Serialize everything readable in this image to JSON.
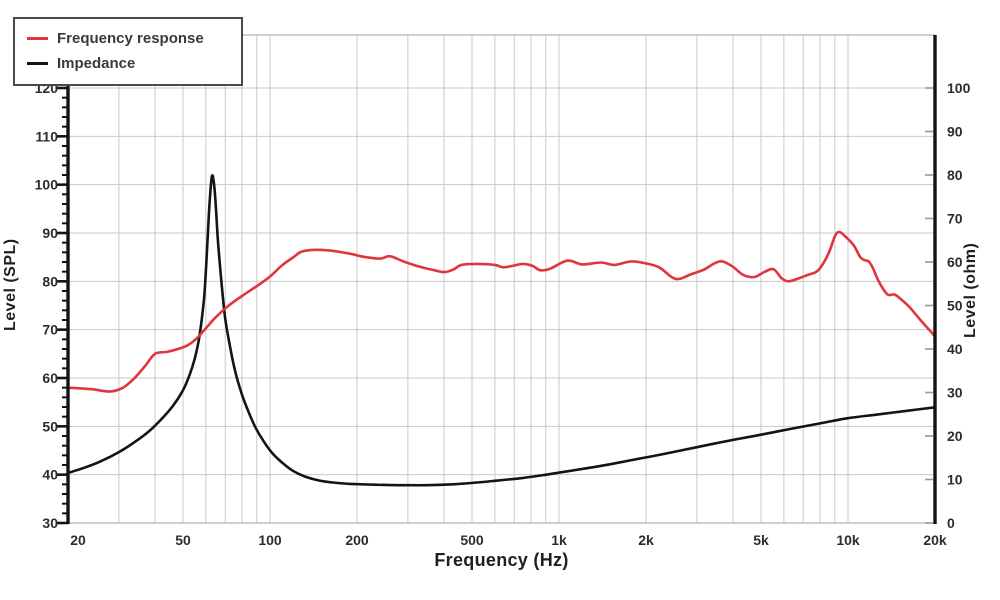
{
  "legend": {
    "items": [
      {
        "label": "Frequency response",
        "color": "#e0353f"
      },
      {
        "label": "Impedance",
        "color": "#141414"
      }
    ]
  },
  "axes": {
    "x": {
      "label": "Frequency (Hz)",
      "scale": "log",
      "min": 20,
      "max": 20000,
      "ticks": [
        {
          "f": 20,
          "label": "20"
        },
        {
          "f": 50,
          "label": "50"
        },
        {
          "f": 100,
          "label": "100"
        },
        {
          "f": 200,
          "label": "200"
        },
        {
          "f": 500,
          "label": "500"
        },
        {
          "f": 1000,
          "label": "1k"
        },
        {
          "f": 2000,
          "label": "2k"
        },
        {
          "f": 5000,
          "label": "5k"
        },
        {
          "f": 10000,
          "label": "10k"
        },
        {
          "f": 20000,
          "label": "20k"
        }
      ]
    },
    "y_left": {
      "label": "Level (SPL)",
      "min": 30,
      "max": 120,
      "tick_labels": [
        30,
        40,
        50,
        60,
        70,
        80,
        90,
        100,
        110,
        120
      ],
      "minor_step": 2
    },
    "y_right": {
      "label": "Level (ohm)",
      "min": 0,
      "max": 100,
      "tick_labels": [
        0,
        10,
        20,
        30,
        40,
        50,
        60,
        70,
        80,
        90,
        100
      ]
    }
  },
  "chart_data": {
    "type": "line",
    "x_scale": "log",
    "x_range": [
      20,
      20000
    ],
    "grid": true,
    "legend_position": "top-left",
    "series": [
      {
        "name": "Frequency response",
        "axis": "left",
        "unit": "dB SPL",
        "color": "#e0353f",
        "points": [
          [
            20,
            58
          ],
          [
            24,
            57.7
          ],
          [
            28,
            57.2
          ],
          [
            31,
            58
          ],
          [
            34,
            60
          ],
          [
            37,
            62.5
          ],
          [
            40,
            65
          ],
          [
            44,
            65.4
          ],
          [
            48,
            66
          ],
          [
            52,
            66.8
          ],
          [
            56,
            68.3
          ],
          [
            60,
            70.3
          ],
          [
            65,
            72.6
          ],
          [
            72,
            75
          ],
          [
            81,
            77.2
          ],
          [
            91,
            79.2
          ],
          [
            100,
            81
          ],
          [
            110,
            83.3
          ],
          [
            120,
            84.9
          ],
          [
            128,
            86.1
          ],
          [
            140,
            86.5
          ],
          [
            160,
            86.4
          ],
          [
            190,
            85.7
          ],
          [
            210,
            85.1
          ],
          [
            240,
            84.7
          ],
          [
            260,
            85.2
          ],
          [
            290,
            84.1
          ],
          [
            330,
            83
          ],
          [
            370,
            82.3
          ],
          [
            400,
            81.9
          ],
          [
            430,
            82.4
          ],
          [
            460,
            83.4
          ],
          [
            520,
            83.6
          ],
          [
            600,
            83.4
          ],
          [
            640,
            82.9
          ],
          [
            690,
            83.2
          ],
          [
            750,
            83.6
          ],
          [
            810,
            83.2
          ],
          [
            860,
            82.3
          ],
          [
            930,
            82.6
          ],
          [
            1070,
            84.3
          ],
          [
            1200,
            83.5
          ],
          [
            1400,
            83.9
          ],
          [
            1550,
            83.4
          ],
          [
            1770,
            84.1
          ],
          [
            1970,
            83.8
          ],
          [
            2220,
            82.9
          ],
          [
            2450,
            80.9
          ],
          [
            2610,
            80.5
          ],
          [
            2870,
            81.5
          ],
          [
            3170,
            82.4
          ],
          [
            3470,
            83.8
          ],
          [
            3690,
            84.1
          ],
          [
            4000,
            83
          ],
          [
            4350,
            81.3
          ],
          [
            4740,
            80.9
          ],
          [
            5160,
            82
          ],
          [
            5530,
            82.5
          ],
          [
            5900,
            80.6
          ],
          [
            6230,
            80
          ],
          [
            6750,
            80.6
          ],
          [
            7310,
            81.4
          ],
          [
            7670,
            81.8
          ],
          [
            8000,
            82.7
          ],
          [
            8570,
            85.8
          ],
          [
            9000,
            89.3
          ],
          [
            9300,
            90.2
          ],
          [
            9700,
            89.5
          ],
          [
            10450,
            87.5
          ],
          [
            11000,
            85.1
          ],
          [
            11400,
            84.4
          ],
          [
            11800,
            84.1
          ],
          [
            12200,
            82.7
          ],
          [
            12700,
            80.3
          ],
          [
            13300,
            78.2
          ],
          [
            13800,
            77.2
          ],
          [
            14400,
            77.3
          ],
          [
            14900,
            76.8
          ],
          [
            16300,
            74.7
          ],
          [
            17800,
            72
          ],
          [
            19600,
            69.2
          ],
          [
            20000,
            68.5
          ]
        ]
      },
      {
        "name": "Impedance",
        "axis": "right",
        "unit": "ohm",
        "color": "#141414",
        "points": [
          [
            20,
            11.5
          ],
          [
            23,
            12.8
          ],
          [
            26,
            14.2
          ],
          [
            30,
            16.3
          ],
          [
            34,
            18.6
          ],
          [
            38,
            21
          ],
          [
            42,
            23.8
          ],
          [
            46,
            26.8
          ],
          [
            50,
            30.5
          ],
          [
            53,
            34.5
          ],
          [
            55,
            38
          ],
          [
            57,
            43
          ],
          [
            59,
            51
          ],
          [
            60,
            58
          ],
          [
            61,
            67
          ],
          [
            62,
            75
          ],
          [
            63,
            79.8
          ],
          [
            64,
            78
          ],
          [
            65,
            72.5
          ],
          [
            66,
            65
          ],
          [
            68,
            55
          ],
          [
            70,
            47
          ],
          [
            73,
            40
          ],
          [
            76,
            34.5
          ],
          [
            80,
            29.5
          ],
          [
            84,
            25.8
          ],
          [
            89,
            22
          ],
          [
            95,
            18.8
          ],
          [
            102,
            16
          ],
          [
            110,
            13.9
          ],
          [
            120,
            12
          ],
          [
            132,
            10.7
          ],
          [
            147,
            9.8
          ],
          [
            165,
            9.3
          ],
          [
            190,
            9
          ],
          [
            230,
            8.8
          ],
          [
            280,
            8.7
          ],
          [
            350,
            8.7
          ],
          [
            430,
            8.9
          ],
          [
            520,
            9.3
          ],
          [
            620,
            9.8
          ],
          [
            740,
            10.3
          ],
          [
            880,
            11
          ],
          [
            1050,
            11.8
          ],
          [
            1250,
            12.6
          ],
          [
            1500,
            13.5
          ],
          [
            1800,
            14.5
          ],
          [
            2200,
            15.6
          ],
          [
            2700,
            16.8
          ],
          [
            3300,
            18
          ],
          [
            4000,
            19.1
          ],
          [
            5000,
            20.3
          ],
          [
            6300,
            21.6
          ],
          [
            8000,
            22.9
          ],
          [
            10000,
            24.1
          ],
          [
            12500,
            24.9
          ],
          [
            16000,
            25.8
          ],
          [
            20000,
            26.6
          ]
        ]
      }
    ]
  },
  "colors": {
    "background": "#ffffff",
    "grid": "#c9c9c9",
    "frame": "#bdbdbd",
    "axis": "#141414",
    "minor_tick_right": "#9a9a9a",
    "text": "#2d2d2d"
  }
}
